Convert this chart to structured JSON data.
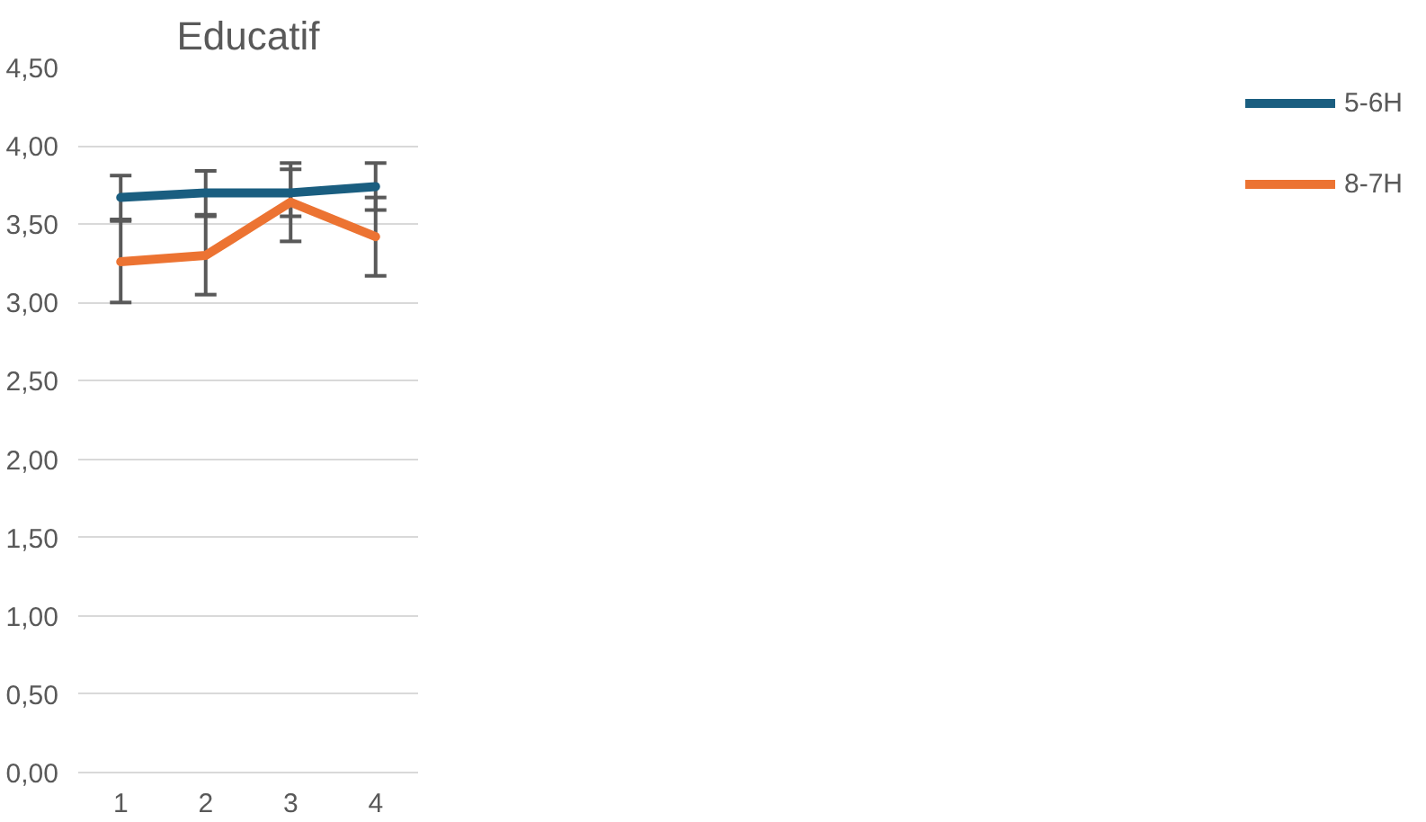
{
  "chart_data": {
    "type": "line",
    "title": "Educatif",
    "categories": [
      "1",
      "2",
      "3",
      "4"
    ],
    "series": [
      {
        "name": "5-6H",
        "color": "#1a5e80",
        "values": [
          3.67,
          3.7,
          3.7,
          3.74
        ],
        "errors": [
          0.14,
          0.14,
          0.15,
          0.15
        ]
      },
      {
        "name": "8-7H",
        "color": "#ec7332",
        "values": [
          3.26,
          3.3,
          3.64,
          3.42
        ],
        "errors": [
          0.26,
          0.25,
          0.25,
          0.25
        ]
      }
    ],
    "ylim": [
      0,
      4.5
    ],
    "yticks": [
      {
        "value": 0,
        "label": "0,00"
      },
      {
        "value": 0.5,
        "label": "0,50"
      },
      {
        "value": 1,
        "label": "1,00"
      },
      {
        "value": 1.5,
        "label": "1,50"
      },
      {
        "value": 2,
        "label": "2,00"
      },
      {
        "value": 2.5,
        "label": "2,50"
      },
      {
        "value": 3,
        "label": "3,00"
      },
      {
        "value": 3.5,
        "label": "3,50"
      },
      {
        "value": 4,
        "label": "4,00"
      },
      {
        "value": 4.5,
        "label": "4,50"
      }
    ],
    "grid": "y",
    "legend": "right",
    "marker": "none",
    "line_style": "solid"
  }
}
